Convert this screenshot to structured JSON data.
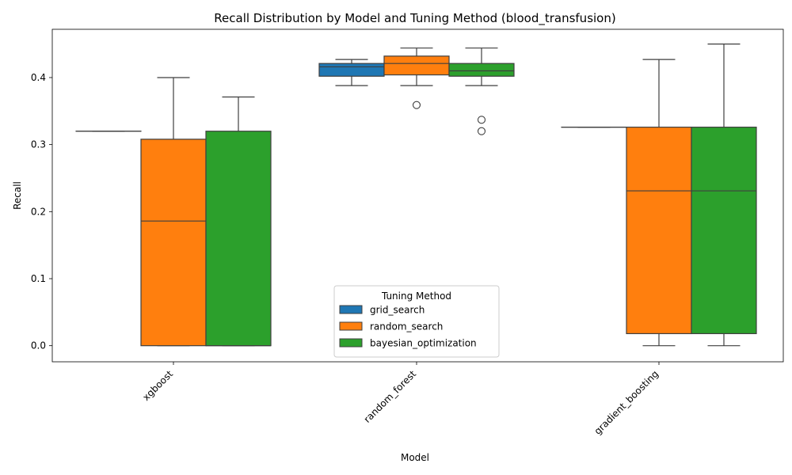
{
  "chart_data": {
    "type": "box",
    "title": "Recall Distribution by Model and Tuning Method (blood_transfusion)",
    "xlabel": "Model",
    "ylabel": "Recall",
    "ylim": [
      -0.024,
      0.472
    ],
    "yticks": [
      "0.0",
      "0.1",
      "0.2",
      "0.3",
      "0.4"
    ],
    "ytick_values": [
      0.0,
      0.1,
      0.2,
      0.3,
      0.4
    ],
    "categories": [
      "xgboost",
      "random_forest",
      "gradient_boosting"
    ],
    "legend": {
      "title": "Tuning Method",
      "placement": "lower-center"
    },
    "series": [
      {
        "name": "grid_search",
        "color": "#1f77b4",
        "boxes": [
          {
            "category": "xgboost",
            "whisker_low": 0.32,
            "q1": 0.32,
            "median": 0.32,
            "q3": 0.32,
            "whisker_high": 0.32,
            "outliers": []
          },
          {
            "category": "random_forest",
            "whisker_low": 0.388,
            "q1": 0.402,
            "median": 0.416,
            "q3": 0.421,
            "whisker_high": 0.427,
            "outliers": []
          },
          {
            "category": "gradient_boosting",
            "whisker_low": 0.326,
            "q1": 0.326,
            "median": 0.326,
            "q3": 0.326,
            "whisker_high": 0.326,
            "outliers": []
          }
        ]
      },
      {
        "name": "random_search",
        "color": "#ff7f0e",
        "boxes": [
          {
            "category": "xgboost",
            "whisker_low": 0.0,
            "q1": 0.0,
            "median": 0.186,
            "q3": 0.308,
            "whisker_high": 0.4,
            "outliers": []
          },
          {
            "category": "random_forest",
            "whisker_low": 0.388,
            "q1": 0.404,
            "median": 0.421,
            "q3": 0.432,
            "whisker_high": 0.444,
            "outliers": [
              0.359
            ]
          },
          {
            "category": "gradient_boosting",
            "whisker_low": 0.0,
            "q1": 0.018,
            "median": 0.231,
            "q3": 0.326,
            "whisker_high": 0.427,
            "outliers": []
          }
        ]
      },
      {
        "name": "bayesian_optimization",
        "color": "#2ca02c",
        "boxes": [
          {
            "category": "xgboost",
            "whisker_low": 0.0,
            "q1": 0.0,
            "median": 0.0,
            "q3": 0.32,
            "whisker_high": 0.371,
            "outliers": []
          },
          {
            "category": "random_forest",
            "whisker_low": 0.388,
            "q1": 0.402,
            "median": 0.41,
            "q3": 0.421,
            "whisker_high": 0.444,
            "outliers": [
              0.337,
              0.32
            ]
          },
          {
            "category": "gradient_boosting",
            "whisker_low": 0.0,
            "q1": 0.018,
            "median": 0.231,
            "q3": 0.326,
            "whisker_high": 0.45,
            "outliers": []
          }
        ]
      }
    ]
  }
}
